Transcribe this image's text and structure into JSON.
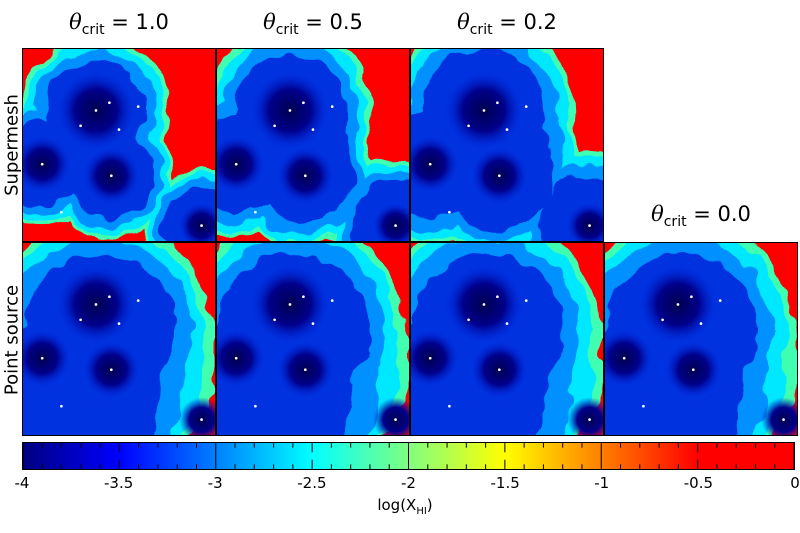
{
  "columns": [
    {
      "symbol": "θ",
      "sub": "crit",
      "rest": " = 1.0"
    },
    {
      "symbol": "θ",
      "sub": "crit",
      "rest": " = 0.5"
    },
    {
      "symbol": "θ",
      "sub": "crit",
      "rest": " = 0.2"
    },
    {
      "symbol": "θ",
      "sub": "crit",
      "rest": " = 0.0"
    }
  ],
  "rows": [
    {
      "label": "Supermesh"
    },
    {
      "label": "Point source"
    }
  ],
  "panels": [
    {
      "row": 0,
      "col": 0,
      "ionized_extent": 0.55,
      "corner_red": 0.9
    },
    {
      "row": 0,
      "col": 1,
      "ionized_extent": 0.7,
      "corner_red": 0.7
    },
    {
      "row": 0,
      "col": 2,
      "ionized_extent": 0.85,
      "corner_red": 0.45
    },
    {
      "row": 1,
      "col": 0,
      "ionized_extent": 1.0,
      "corner_red": 0.2
    },
    {
      "row": 1,
      "col": 1,
      "ionized_extent": 1.0,
      "corner_red": 0.2
    },
    {
      "row": 1,
      "col": 2,
      "ionized_extent": 1.0,
      "corner_red": 0.2
    },
    {
      "row": 1,
      "col": 3,
      "ionized_extent": 1.0,
      "corner_red": 0.2
    }
  ],
  "colorbar": {
    "label_main": "log(X",
    "label_sub": "HI",
    "label_end": ")",
    "min": -4,
    "max": 0,
    "ticks": [
      "-4",
      "-3.5",
      "-3",
      "-2.5",
      "-2",
      "-1.5",
      "-1",
      "-0.5",
      "0"
    ],
    "colormap": [
      "#000080",
      "#0000ff",
      "#00ffff",
      "#ffff00",
      "#ff0000"
    ]
  }
}
